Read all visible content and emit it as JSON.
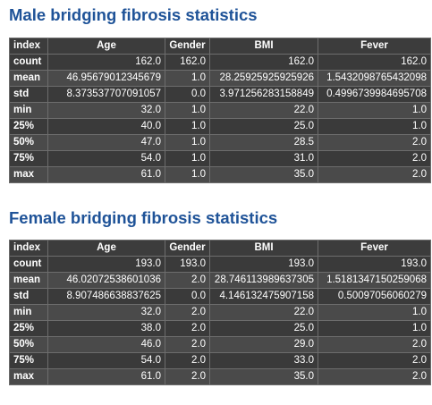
{
  "male": {
    "title": "Male bridging fibrosis statistics",
    "columns": [
      "index",
      "Age",
      "Gender",
      "BMI",
      "Fever"
    ],
    "rows": [
      {
        "label": "count",
        "values": [
          "162.0",
          "162.0",
          "162.0",
          "162.0"
        ]
      },
      {
        "label": "mean",
        "values": [
          "46.95679012345679",
          "1.0",
          "28.25925925925926",
          "1.5432098765432098"
        ]
      },
      {
        "label": "std",
        "values": [
          "8.373537707091057",
          "0.0",
          "3.971256283158849",
          "0.4996739984695708"
        ]
      },
      {
        "label": "min",
        "values": [
          "32.0",
          "1.0",
          "22.0",
          "1.0"
        ]
      },
      {
        "label": "25%",
        "values": [
          "40.0",
          "1.0",
          "25.0",
          "1.0"
        ]
      },
      {
        "label": "50%",
        "values": [
          "47.0",
          "1.0",
          "28.5",
          "2.0"
        ]
      },
      {
        "label": "75%",
        "values": [
          "54.0",
          "1.0",
          "31.0",
          "2.0"
        ]
      },
      {
        "label": "max",
        "values": [
          "61.0",
          "1.0",
          "35.0",
          "2.0"
        ]
      }
    ]
  },
  "female": {
    "title": "Female bridging fibrosis statistics",
    "columns": [
      "index",
      "Age",
      "Gender",
      "BMI",
      "Fever"
    ],
    "rows": [
      {
        "label": "count",
        "values": [
          "193.0",
          "193.0",
          "193.0",
          "193.0"
        ]
      },
      {
        "label": "mean",
        "values": [
          "46.02072538601036",
          "2.0",
          "28.746113989637305",
          "1.5181347150259068"
        ]
      },
      {
        "label": "std",
        "values": [
          "8.907486638837625",
          "0.0",
          "4.146132475907158",
          "0.50097056060279"
        ]
      },
      {
        "label": "min",
        "values": [
          "32.0",
          "2.0",
          "22.0",
          "1.0"
        ]
      },
      {
        "label": "25%",
        "values": [
          "38.0",
          "2.0",
          "25.0",
          "1.0"
        ]
      },
      {
        "label": "50%",
        "values": [
          "46.0",
          "2.0",
          "29.0",
          "2.0"
        ]
      },
      {
        "label": "75%",
        "values": [
          "54.0",
          "2.0",
          "33.0",
          "2.0"
        ]
      },
      {
        "label": "max",
        "values": [
          "61.0",
          "2.0",
          "35.0",
          "2.0"
        ]
      }
    ]
  }
}
